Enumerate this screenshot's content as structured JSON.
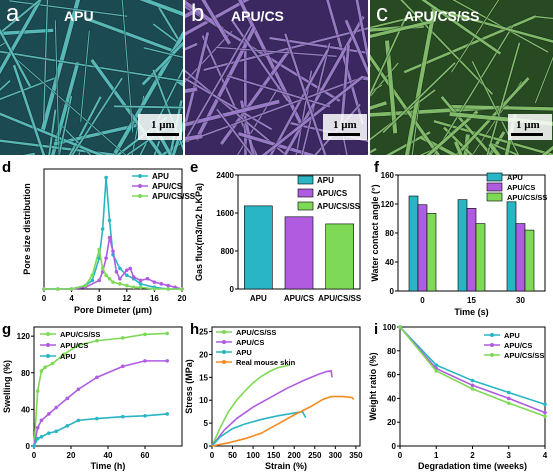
{
  "panels": {
    "a": {
      "letter": "a",
      "label": "APU",
      "scale": "1 μm",
      "tint": "#5fc7c6",
      "dark": "#1c4a52"
    },
    "b": {
      "letter": "b",
      "label": "APU/CS",
      "scale": "1 μm",
      "tint": "#a583d6",
      "dark": "#3b2860"
    },
    "c": {
      "letter": "c",
      "label": "APU/CS/SS",
      "scale": "1 μm",
      "tint": "#8cc870",
      "dark": "#284a22"
    }
  },
  "chart_data": [
    {
      "panel": "d",
      "type": "line",
      "xlabel": "Pore Dimeter (μm)",
      "ylabel": "Pore size distribution",
      "xlim": [
        0,
        20
      ],
      "xticks": [
        0,
        4,
        8,
        12,
        16,
        20
      ],
      "xtick_labels": [
        "0",
        "4",
        "8",
        "12",
        "16",
        "20"
      ],
      "ylim": [
        0,
        70
      ],
      "series": [
        {
          "name": "APU",
          "color": "#29b5c4",
          "x": [
            0,
            2,
            4,
            6,
            7,
            8,
            8.5,
            9,
            9.5,
            10,
            11,
            12,
            13,
            14,
            16,
            18,
            20
          ],
          "y": [
            0,
            0,
            0,
            2,
            5,
            18,
            35,
            65,
            40,
            20,
            12,
            8,
            6,
            3,
            1,
            0,
            0
          ]
        },
        {
          "name": "APU/CS",
          "color": "#b05ce0",
          "x": [
            0,
            4,
            6,
            8,
            8.5,
            9,
            9.5,
            10,
            10.5,
            11,
            12,
            12.5,
            13,
            14,
            15,
            16,
            17,
            18,
            19,
            20
          ],
          "y": [
            0,
            0,
            1,
            5,
            10,
            18,
            30,
            22,
            10,
            6,
            11,
            12,
            7,
            5,
            6,
            4,
            3,
            2,
            1,
            0
          ]
        },
        {
          "name": "APU/CS/SS",
          "color": "#7ed957",
          "x": [
            0,
            2,
            4,
            6,
            7,
            8,
            8.5,
            9,
            9.5,
            10,
            11,
            12,
            13,
            14,
            16,
            18,
            20
          ],
          "y": [
            0,
            0,
            0,
            2,
            8,
            23,
            12,
            8,
            6,
            4,
            3,
            2,
            1,
            1,
            0,
            0,
            0
          ]
        }
      ],
      "legend": "top-right"
    },
    {
      "panel": "e",
      "type": "bar",
      "ylabel": "Gas flux(m3/m2 h.KPa)",
      "ylim": [
        0,
        2400
      ],
      "yticks": [
        0,
        800,
        1600,
        2400
      ],
      "categories": [
        "APU",
        "APU/CS",
        "APU/CS/SS"
      ],
      "values": [
        1750,
        1520,
        1370
      ],
      "colors": [
        "#29b5c4",
        "#b05ce0",
        "#7ed957"
      ],
      "legend": "top-right"
    },
    {
      "panel": "f",
      "type": "bar",
      "xlabel": "Time (s)",
      "ylabel": "Water contact angle (°)",
      "ylim": [
        0,
        160
      ],
      "yticks": [
        0,
        40,
        80,
        120,
        160
      ],
      "categories": [
        "0",
        "15",
        "30"
      ],
      "series": [
        {
          "name": "APU",
          "color": "#29b5c4",
          "values": [
            131,
            126,
            123
          ]
        },
        {
          "name": "APU/CS",
          "color": "#b05ce0",
          "values": [
            119,
            114,
            93
          ]
        },
        {
          "name": "APU/CS/SS",
          "color": "#7ed957",
          "values": [
            107,
            93,
            84
          ]
        }
      ],
      "legend": "top-right"
    },
    {
      "panel": "g",
      "type": "line",
      "xlabel": "Time (h)",
      "ylabel": "Swelling (%)",
      "xlim": [
        0,
        80
      ],
      "xticks": [
        0,
        20,
        40,
        60
      ],
      "ylim": [
        0,
        130
      ],
      "yticks": [
        0,
        40,
        80,
        120
      ],
      "series": [
        {
          "name": "APU/CS/SS",
          "color": "#7ed957",
          "x": [
            0,
            2,
            4,
            6,
            10,
            16,
            24,
            34,
            48,
            60,
            72
          ],
          "y": [
            0,
            60,
            82,
            86,
            90,
            100,
            110,
            115,
            118,
            122,
            123
          ]
        },
        {
          "name": "APU/CS",
          "color": "#b05ce0",
          "x": [
            0,
            2,
            4,
            8,
            12,
            18,
            24,
            34,
            48,
            60,
            72
          ],
          "y": [
            0,
            20,
            28,
            35,
            42,
            52,
            62,
            75,
            87,
            93,
            93
          ]
        },
        {
          "name": "APU",
          "color": "#29b5c4",
          "x": [
            0,
            2,
            4,
            8,
            12,
            18,
            24,
            34,
            48,
            60,
            72
          ],
          "y": [
            0,
            8,
            10,
            14,
            16,
            22,
            28,
            30,
            32,
            33,
            35
          ]
        }
      ],
      "legend": "top-left"
    },
    {
      "panel": "h",
      "type": "line",
      "xlabel": "Strain (%)",
      "ylabel": "Stress (MPa)",
      "xlim": [
        0,
        360
      ],
      "xticks": [
        0,
        50,
        100,
        150,
        200,
        250,
        300,
        350
      ],
      "ylim": [
        0,
        26
      ],
      "yticks": [
        0,
        5,
        10,
        15,
        20,
        25
      ],
      "series": [
        {
          "name": "APU/CS/SS",
          "color": "#7ed957",
          "x": [
            0,
            20,
            40,
            60,
            80,
            100,
            120,
            140,
            160,
            180,
            190
          ],
          "y": [
            0,
            4,
            7.5,
            10,
            12,
            13.8,
            15.2,
            16.3,
            17.1,
            17.5,
            17.7
          ]
        },
        {
          "name": "APU/CS",
          "color": "#b05ce0",
          "x": [
            0,
            30,
            60,
            100,
            140,
            180,
            220,
            260,
            280,
            290,
            292
          ],
          "y": [
            0,
            3.5,
            6,
            8.5,
            10.5,
            12.5,
            14.2,
            15.7,
            16.3,
            16.4,
            15
          ]
        },
        {
          "name": "APU",
          "color": "#29b5c4",
          "x": [
            0,
            20,
            50,
            80,
            120,
            160,
            200,
            220,
            228
          ],
          "y": [
            0,
            2,
            3.8,
            4.8,
            5.8,
            6.6,
            7.2,
            7.5,
            6.2
          ]
        },
        {
          "name": "Real mouse skin",
          "color": "#f58a1f",
          "x": [
            0,
            40,
            80,
            120,
            160,
            200,
            240,
            270,
            290,
            320,
            340,
            345
          ],
          "y": [
            0,
            0.7,
            1.6,
            2.8,
            4.8,
            6.8,
            8.6,
            10.2,
            10.8,
            10.8,
            10.6,
            10.2
          ]
        }
      ],
      "legend": "top-left"
    },
    {
      "panel": "i",
      "type": "line",
      "xlabel": "Degradation time (weeks)",
      "ylabel": "Weight ratio (%)",
      "xlim": [
        0,
        4
      ],
      "xticks": [
        0,
        1,
        2,
        3,
        4
      ],
      "ylim": [
        0,
        100
      ],
      "yticks": [
        0,
        20,
        40,
        60,
        80,
        100
      ],
      "series": [
        {
          "name": "APU",
          "color": "#29b5c4",
          "x": [
            0,
            1,
            2,
            3,
            4
          ],
          "y": [
            100,
            68,
            55,
            45,
            35
          ]
        },
        {
          "name": "APU/CS",
          "color": "#b05ce0",
          "x": [
            0,
            1,
            2,
            3,
            4
          ],
          "y": [
            100,
            65,
            51,
            40,
            28
          ]
        },
        {
          "name": "APU/CS/SS",
          "color": "#7ed957",
          "x": [
            0,
            1,
            2,
            3,
            4
          ],
          "y": [
            100,
            63,
            48,
            36,
            25
          ]
        }
      ],
      "legend": "top-right"
    }
  ]
}
